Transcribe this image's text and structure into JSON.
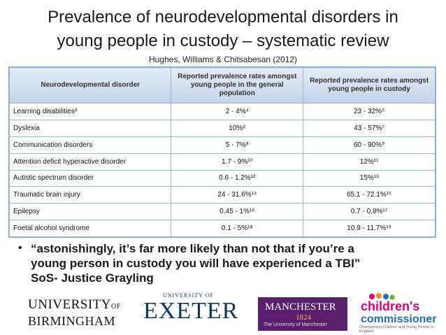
{
  "title_line1": "Prevalence  of neurodevelopmental disorders in",
  "title_line2": "young people in custody – systematic review",
  "subtitle": "Hughes, Williams & Chitsabesan (2012)",
  "table": {
    "headers": [
      "Neurodevelopmental disorder",
      "Reported prevalence rates amongst young people in the general population",
      "Reported prevalence rates amongst young people in custody"
    ],
    "rows": [
      {
        "disorder": "Learning disabilities³",
        "general": "2 - 4%⁴",
        "custody": "23 - 32%⁵"
      },
      {
        "disorder": "Dyslexia",
        "general": "10%⁶",
        "custody": "43 - 57%⁷"
      },
      {
        "disorder": "Communication disorders",
        "general": "5 - 7%⁸",
        "custody": "60 - 90%⁹"
      },
      {
        "disorder": "Attention deficit hyperactive disorder",
        "general": "1.7 - 9%¹⁰",
        "custody": "12%¹¹"
      },
      {
        "disorder": "Autistic spectrum disorder",
        "general": "0.6 - 1.2%¹²",
        "custody": "15%¹³"
      },
      {
        "disorder": "Traumatic brain injury",
        "general": "24 - 31.6%¹⁴",
        "custody": "65.1 - 72.1%¹⁵"
      },
      {
        "disorder": "Epilepsy",
        "general": "0.45 - 1%¹⁶",
        "custody": "0.7 - 0.8%¹⁷"
      },
      {
        "disorder": "Foetal alcohol syndrome",
        "general": "0.1 - 5%¹⁸",
        "custody": "10.9 - 11.7%¹⁹"
      }
    ]
  },
  "bullet": "•",
  "quote_line1": "“astonishingly, it’s far more likely than not that if you’re a",
  "quote_line2": "young person in custody  you will have experienced a TBI”",
  "quote_line3": "SoS- Justice Grayling",
  "logos": {
    "birmingham_line1": "UNIVERSITY",
    "birmingham_of": "OF",
    "birmingham_line2": "BIRMINGHAM",
    "exeter_small": "UNIVERSITY OF",
    "exeter_big": "EXETER",
    "manchester_name": "MANCHESTER",
    "manchester_year": "1824",
    "manchester_sub": "The University of Manchester",
    "cc_line1": "children's",
    "cc_line2": "commissioner",
    "cc_tagline": "Championing Children and Young People in England"
  },
  "colors": {
    "table_header": "#c3d3e8",
    "table_border": "#9fb4d2",
    "manchester_purple": "#5a1e6e",
    "cc_pink": "#e2007a",
    "cc_blue": "#1d6fb8",
    "exeter_blue": "#0d3a5c"
  }
}
